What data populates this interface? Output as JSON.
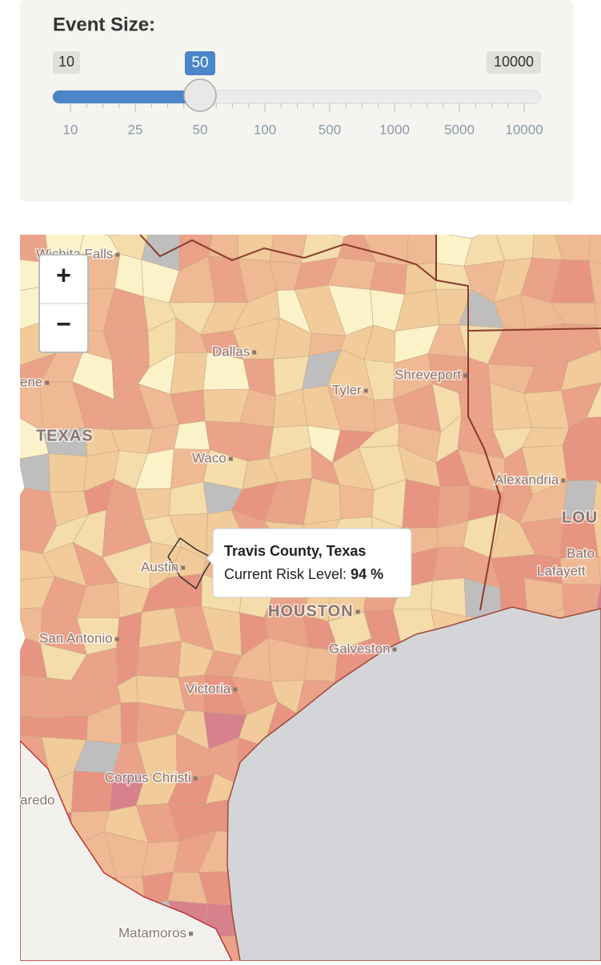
{
  "panel": {
    "title": "Event Size:",
    "slider": {
      "min": "10",
      "max": "10000",
      "value": "50",
      "ticks": [
        "10",
        "25",
        "50",
        "100",
        "500",
        "1000",
        "5000",
        "10000"
      ]
    }
  },
  "zoom": {
    "in": "+",
    "out": "−"
  },
  "map": {
    "labels": [
      {
        "text": "Wichita Falls"
      },
      {
        "text": "ene"
      },
      {
        "text": "Dallas"
      },
      {
        "text": "Shreveport"
      },
      {
        "text": "Tyler"
      },
      {
        "text": "TEXAS"
      },
      {
        "text": "Waco"
      },
      {
        "text": "Alexandria"
      },
      {
        "text": "LOU"
      },
      {
        "text": "Austin"
      },
      {
        "text": "Bato"
      },
      {
        "text": "Lafayett"
      },
      {
        "text": "HOUSTON"
      },
      {
        "text": "San Antonio"
      },
      {
        "text": "Galveston"
      },
      {
        "text": "Victoria"
      },
      {
        "text": "Corpus Christi"
      },
      {
        "text": "aredo"
      },
      {
        "text": "Matamoros"
      }
    ]
  },
  "tooltip": {
    "title": "Travis County, Texas",
    "label": "Current Risk Level:",
    "value": "94 %"
  }
}
